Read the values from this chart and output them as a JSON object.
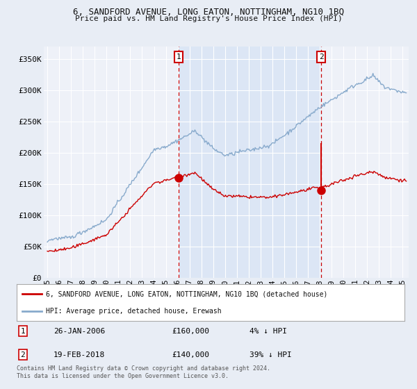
{
  "title1": "6, SANDFORD AVENUE, LONG EATON, NOTTINGHAM, NG10 1BQ",
  "title2": "Price paid vs. HM Land Registry's House Price Index (HPI)",
  "ylabel_ticks": [
    "£0",
    "£50K",
    "£100K",
    "£150K",
    "£200K",
    "£250K",
    "£300K",
    "£350K"
  ],
  "ytick_values": [
    0,
    50000,
    100000,
    150000,
    200000,
    250000,
    300000,
    350000
  ],
  "ylim": [
    0,
    370000
  ],
  "xlim_start": 1994.7,
  "xlim_end": 2025.5,
  "bg_color": "#e8edf5",
  "plot_bg_color": "#eef1f8",
  "highlight_color": "#dce6f5",
  "grid_color": "#ffffff",
  "line1_color": "#cc0000",
  "line2_color": "#88aacc",
  "vline_color": "#cc0000",
  "sale1_x": 2006.07,
  "sale1_y": 160000,
  "sale2_x": 2018.12,
  "sale2_y": 140000,
  "sale2_peak_y": 215000,
  "legend_label1": "6, SANDFORD AVENUE, LONG EATON, NOTTINGHAM, NG10 1BQ (detached house)",
  "legend_label2": "HPI: Average price, detached house, Erewash",
  "annotation1_label": "1",
  "annotation2_label": "2",
  "footer": "Contains HM Land Registry data © Crown copyright and database right 2024.\nThis data is licensed under the Open Government Licence v3.0.",
  "xtick_years": [
    1995,
    1996,
    1997,
    1998,
    1999,
    2000,
    2001,
    2002,
    2003,
    2004,
    2005,
    2006,
    2007,
    2008,
    2009,
    2010,
    2011,
    2012,
    2013,
    2014,
    2015,
    2016,
    2017,
    2018,
    2019,
    2020,
    2021,
    2022,
    2023,
    2024,
    2025
  ]
}
